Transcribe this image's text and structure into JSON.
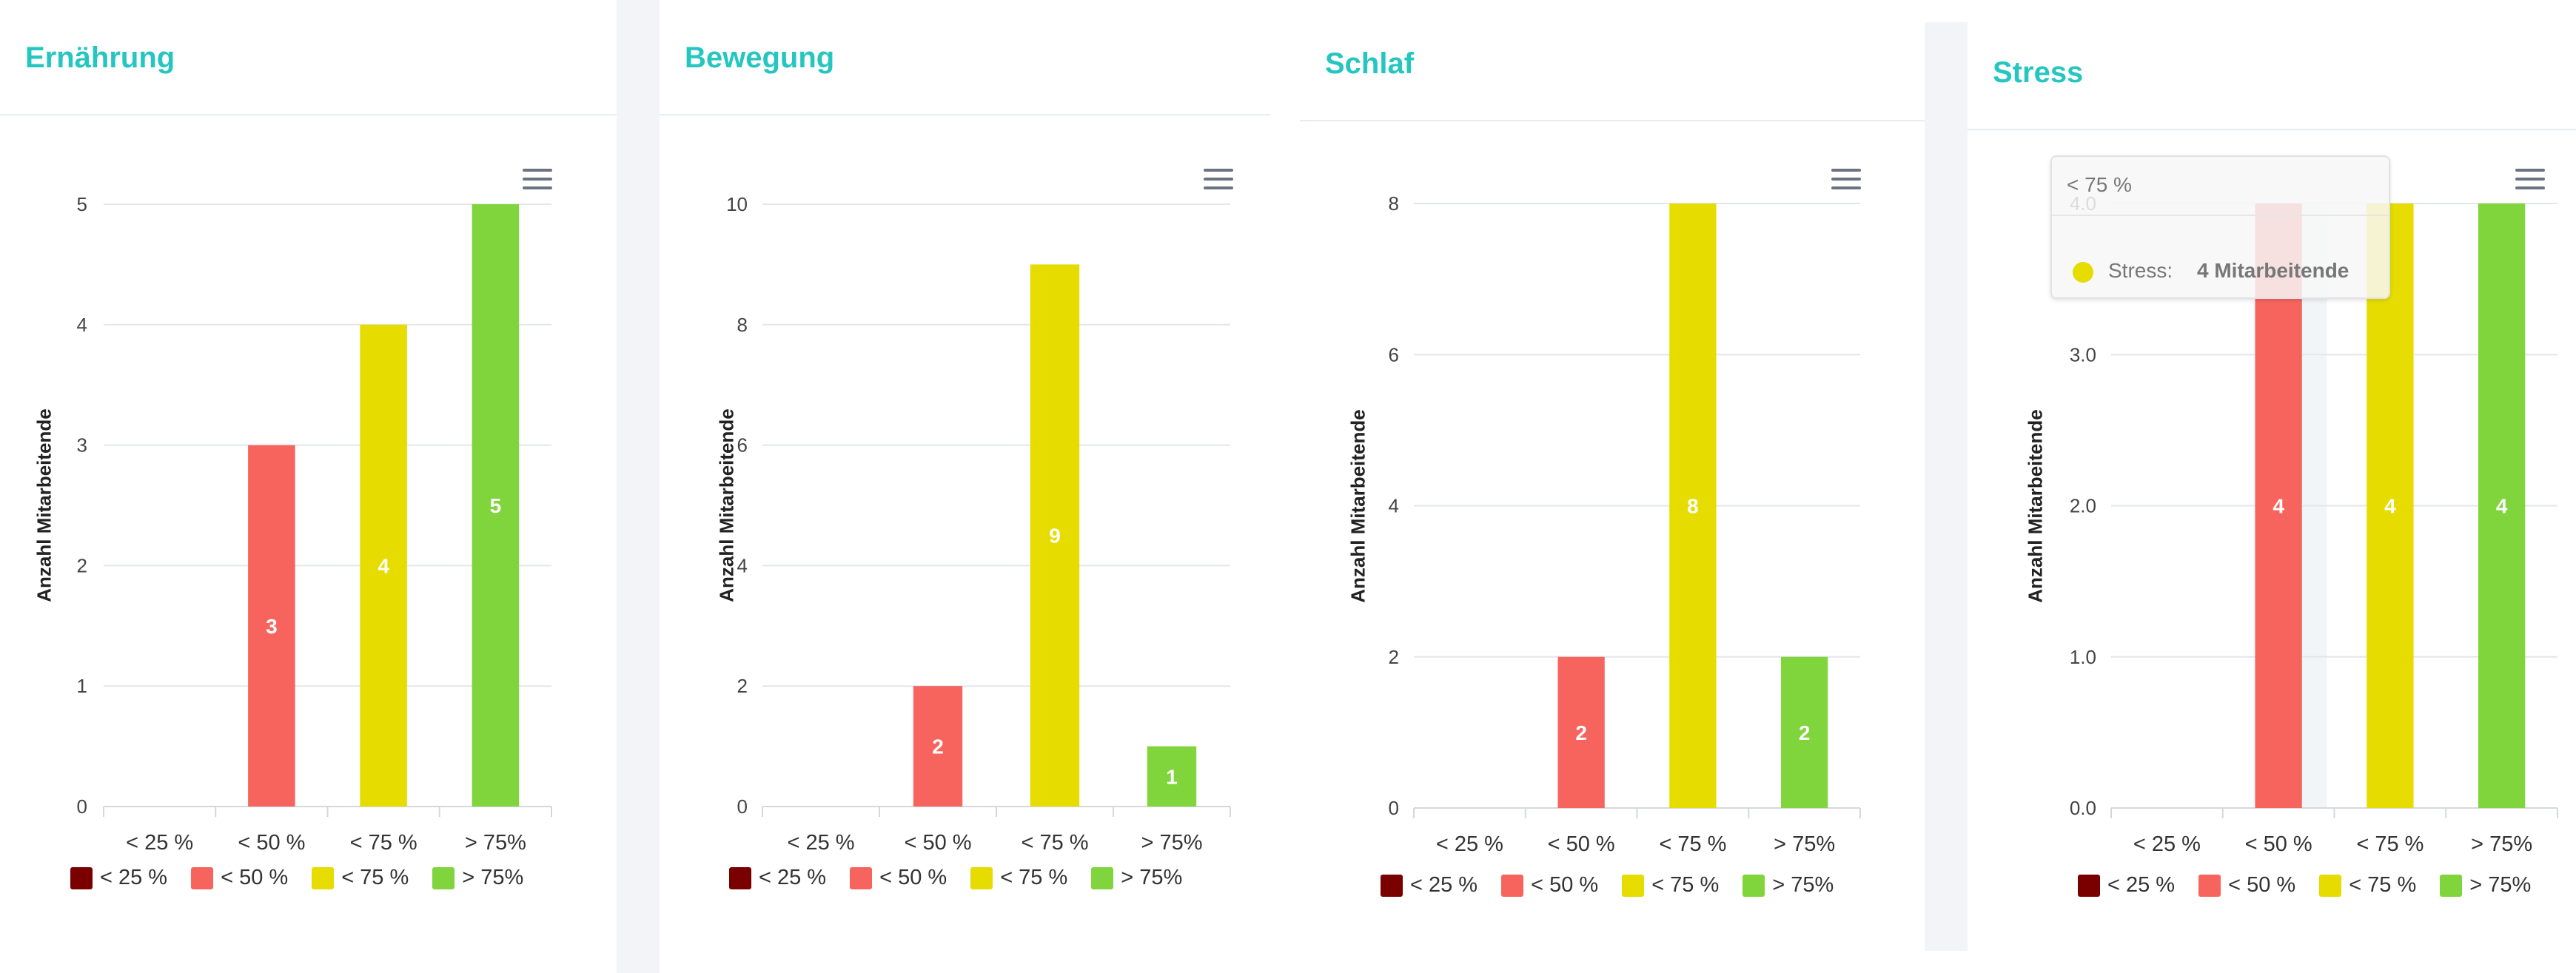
{
  "legend": [
    "< 25 %",
    "< 50 %",
    "< 75 %",
    "> 75%"
  ],
  "colors": [
    "#7a0000",
    "#f7645e",
    "#e6dc00",
    "#80d43c"
  ],
  "chart_data": [
    {
      "type": "bar",
      "title": "Ernährung",
      "ylabel": "Anzahl Mitarbeitende",
      "categories": [
        "< 25 %",
        "< 50 %",
        "< 75 %",
        "> 75%"
      ],
      "values": [
        0,
        3,
        4,
        5
      ],
      "ylim": [
        0,
        5
      ],
      "yticks": [
        "0",
        "1",
        "2",
        "3",
        "4",
        "5"
      ],
      "grid": true
    },
    {
      "type": "bar",
      "title": "Bewegung",
      "ylabel": "Anzahl Mitarbeitende",
      "categories": [
        "< 25 %",
        "< 50 %",
        "< 75 %",
        "> 75%"
      ],
      "values": [
        0,
        2,
        9,
        1
      ],
      "ylim": [
        0,
        10
      ],
      "yticks": [
        "0",
        "2",
        "4",
        "6",
        "8",
        "10"
      ],
      "grid": true
    },
    {
      "type": "bar",
      "title": "Schlaf",
      "ylabel": "Anzahl Mitarbeitende",
      "categories": [
        "< 25 %",
        "< 50 %",
        "< 75 %",
        "> 75%"
      ],
      "values": [
        0,
        2,
        8,
        2
      ],
      "ylim": [
        0,
        8
      ],
      "yticks": [
        "0",
        "2",
        "4",
        "6",
        "8"
      ],
      "grid": true
    },
    {
      "type": "bar",
      "title": "Stress",
      "ylabel": "Anzahl Mitarbeitende",
      "categories": [
        "< 25 %",
        "< 50 %",
        "< 75 %",
        "> 75%"
      ],
      "values": [
        0,
        4,
        4,
        4
      ],
      "ylim": [
        0,
        4
      ],
      "yticks": [
        "0.0",
        "1.0",
        "2.0",
        "3.0",
        "4.0"
      ],
      "grid": true,
      "tooltip": {
        "title": "< 75 %",
        "series": "Stress:",
        "value": "4 Mitarbeitende"
      }
    }
  ]
}
